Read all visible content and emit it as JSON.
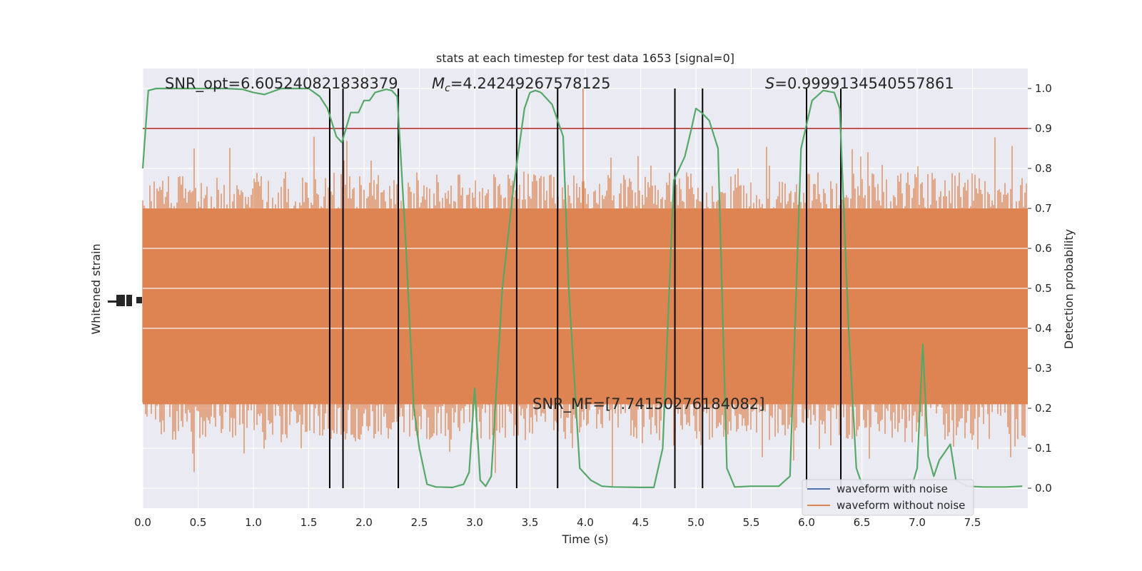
{
  "chart_data": {
    "type": "line",
    "title": "stats at each timestep for test data 1653 [signal=0]",
    "xlabel": "Time (s)",
    "ylabel_left": "Whitened strain",
    "ylabel_right": "Detection probability",
    "xlim": [
      0.0,
      8.0
    ],
    "xticks": [
      "0.0",
      "0.5",
      "1.0",
      "1.5",
      "2.0",
      "2.5",
      "3.0",
      "3.5",
      "4.0",
      "4.5",
      "5.0",
      "5.5",
      "6.0",
      "6.5",
      "7.0",
      "7.5"
    ],
    "ylim_right": [
      -0.05,
      1.05
    ],
    "yticks_right": [
      "0.0",
      "0.1",
      "0.2",
      "0.3",
      "0.4",
      "0.5",
      "0.6",
      "0.7",
      "0.8",
      "0.9",
      "1.0"
    ],
    "grid": true,
    "legend_position": "lower right",
    "legend": [
      "waveform with noise",
      "waveform without noise"
    ],
    "annotations": {
      "snr_opt": "SNR_opt=6.605240821838379",
      "mc_symbol": "M",
      "mc_sub": "c",
      "mc_value": "=4.24249267578125",
      "s_symbol": "S",
      "s_value": "=0.9999134540557861",
      "snr_mf": "SNR_MF=[7.74150276184082]"
    },
    "threshold": 0.9,
    "vertical_lines_x": [
      1.69,
      1.81,
      2.31,
      3.38,
      3.75,
      4.81,
      5.06,
      6.0,
      6.31
    ],
    "series": [
      {
        "name": "waveform with noise",
        "color": "#4c72b0",
        "note_values": "strain values not individually legible; trace hidden beneath the noise-free waveform"
      },
      {
        "name": "waveform without noise",
        "color": "#dd8452",
        "band_center": 0.455,
        "band_half_width": 0.245,
        "spike_max": 0.98,
        "spike_min": 0.0
      },
      {
        "name": "detection probability",
        "color": "#55a868",
        "x": [
          0.0,
          0.05,
          0.12,
          0.25,
          0.5,
          0.75,
          0.9,
          1.0,
          1.1,
          1.25,
          1.35,
          1.5,
          1.6,
          1.67,
          1.75,
          1.8,
          1.88,
          1.95,
          2.0,
          2.05,
          2.1,
          2.2,
          2.25,
          2.3,
          2.33,
          2.38,
          2.45,
          2.5,
          2.57,
          2.65,
          2.8,
          2.9,
          2.95,
          3.0,
          3.05,
          3.1,
          3.15,
          3.25,
          3.35,
          3.45,
          3.5,
          3.55,
          3.6,
          3.7,
          3.8,
          3.85,
          3.95,
          4.05,
          4.15,
          4.25,
          4.5,
          4.62,
          4.7,
          4.8,
          4.9,
          4.96,
          5.0,
          5.05,
          5.12,
          5.2,
          5.28,
          5.35,
          5.5,
          5.75,
          5.85,
          5.95,
          6.05,
          6.15,
          6.25,
          6.3,
          6.38,
          6.45,
          6.5,
          6.6,
          6.8,
          6.95,
          7.0,
          7.05,
          7.1,
          7.15,
          7.2,
          7.3,
          7.35,
          7.45,
          7.6,
          7.8,
          7.95
        ],
        "y": [
          0.8,
          0.995,
          1.0,
          1.0,
          1.0,
          1.0,
          0.998,
          0.99,
          0.985,
          1.0,
          1.0,
          1.0,
          0.98,
          0.95,
          0.88,
          0.865,
          0.94,
          0.94,
          0.97,
          0.97,
          0.99,
          0.998,
          0.995,
          0.98,
          0.84,
          0.6,
          0.2,
          0.1,
          0.01,
          0.003,
          0.002,
          0.01,
          0.04,
          0.25,
          0.02,
          0.005,
          0.03,
          0.5,
          0.75,
          0.95,
          0.99,
          0.995,
          0.99,
          0.96,
          0.88,
          0.5,
          0.05,
          0.02,
          0.005,
          0.003,
          0.002,
          0.002,
          0.1,
          0.77,
          0.83,
          0.9,
          0.95,
          0.94,
          0.92,
          0.85,
          0.05,
          0.003,
          0.005,
          0.005,
          0.03,
          0.85,
          0.97,
          0.995,
          0.99,
          0.95,
          0.4,
          0.05,
          0.01,
          0.005,
          0.003,
          0.003,
          0.05,
          0.36,
          0.08,
          0.03,
          0.07,
          0.11,
          0.02,
          0.005,
          0.003,
          0.003,
          0.005
        ]
      }
    ]
  }
}
